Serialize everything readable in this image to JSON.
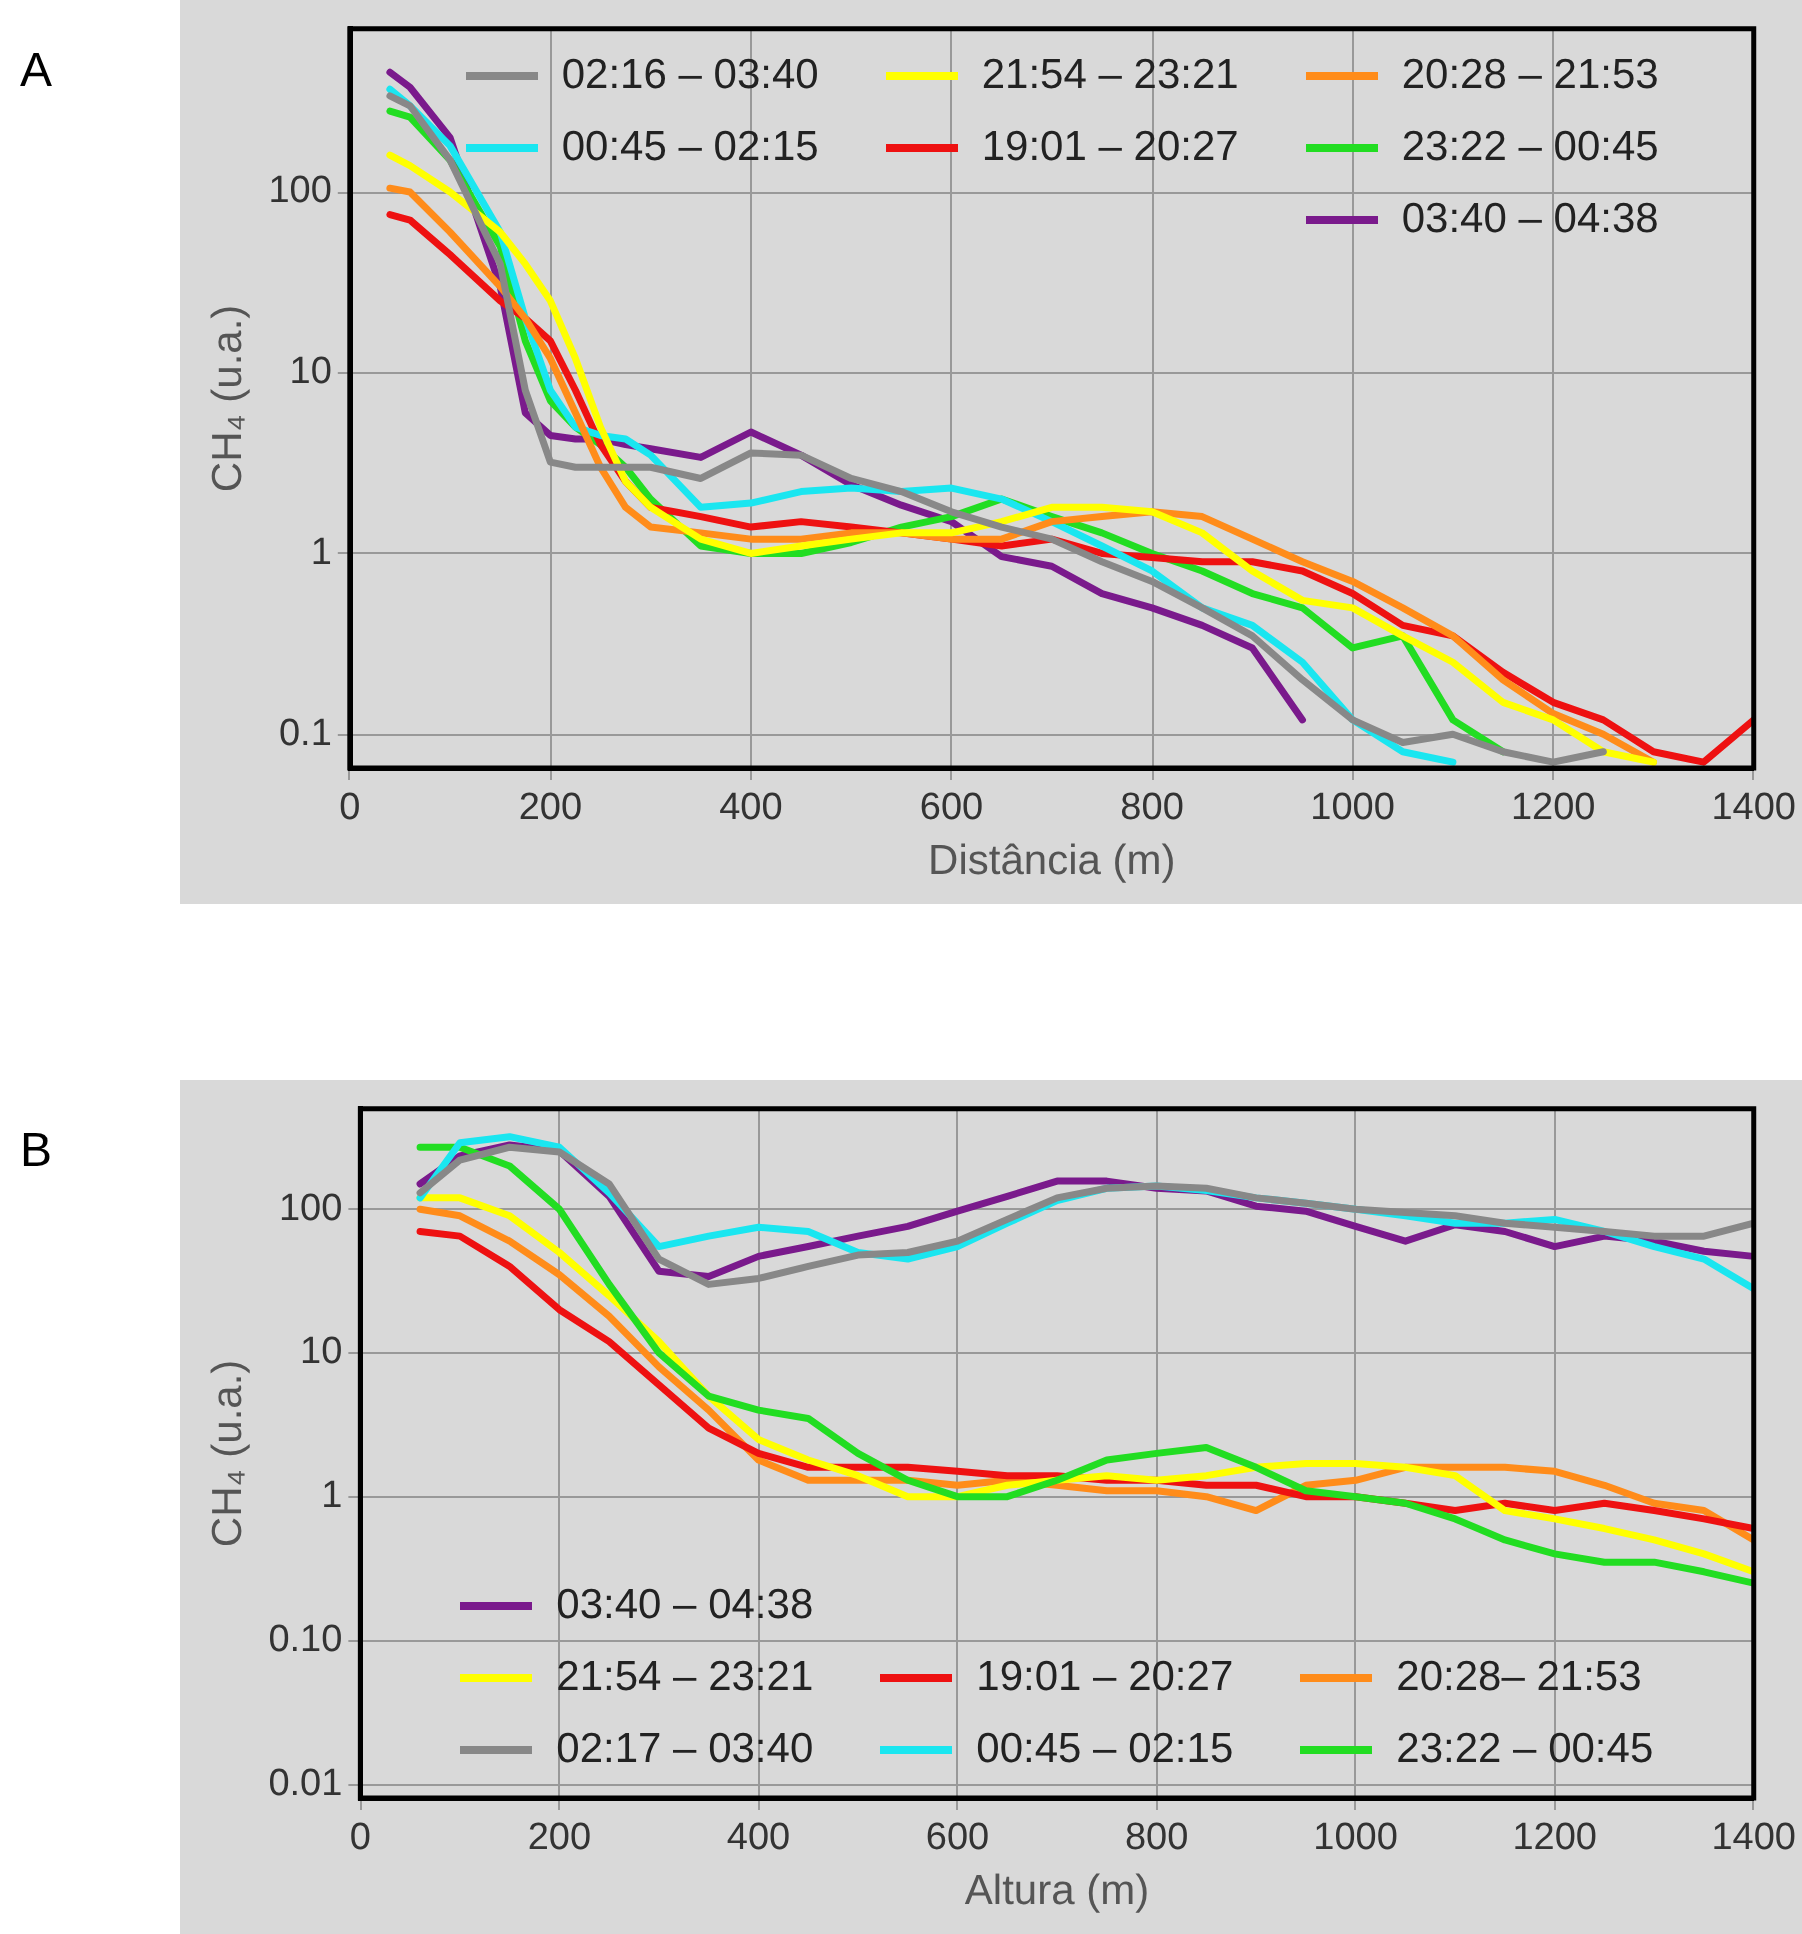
{
  "chart_data": [
    {
      "type": "line",
      "title": "A",
      "xlabel": "Distância (m)",
      "ylabel": "CH₄ (u.a.)",
      "log": "y",
      "grid": true,
      "legend": "top right",
      "line_style": "solid",
      "marker": "none",
      "xlim": [
        0,
        1400
      ],
      "xticks": [
        0,
        200,
        400,
        600,
        800,
        1000,
        1200,
        1400
      ],
      "ylim": [
        0.065,
        800
      ],
      "yticks": [
        0.1,
        1,
        10,
        100
      ],
      "x": [
        40,
        60,
        100,
        150,
        175,
        200,
        225,
        250,
        275,
        300,
        350,
        400,
        450,
        500,
        550,
        600,
        650,
        700,
        750,
        800,
        850,
        900,
        950,
        1000,
        1050,
        1100,
        1150,
        1200,
        1250,
        1300,
        1350,
        1400
      ],
      "series": [
        {
          "name": "02:16 – 03:40",
          "color": "#888888",
          "values": [
            340,
            300,
            150,
            40,
            8,
            3.2,
            3.0,
            3.0,
            3.0,
            3.0,
            2.6,
            3.6,
            3.5,
            2.6,
            2.2,
            1.7,
            1.4,
            1.2,
            0.9,
            0.7,
            0.5,
            0.35,
            0.2,
            0.12,
            0.09,
            0.1,
            0.08,
            0.07,
            0.08,
            null,
            null,
            null
          ]
        },
        {
          "name": "21:54 – 23:21",
          "color": "#ffff00",
          "values": [
            160,
            140,
            100,
            60,
            40,
            25,
            12,
            5,
            2.5,
            1.8,
            1.2,
            1.0,
            1.1,
            1.2,
            1.3,
            1.3,
            1.5,
            1.8,
            1.8,
            1.7,
            1.3,
            0.8,
            0.55,
            0.5,
            0.35,
            0.25,
            0.15,
            0.12,
            0.08,
            0.07,
            null,
            null
          ]
        },
        {
          "name": "20:28 – 21:53",
          "color": "#ff8c1a",
          "values": [
            105,
            100,
            60,
            30,
            20,
            12,
            6,
            3,
            1.8,
            1.4,
            1.3,
            1.2,
            1.2,
            1.3,
            1.3,
            1.2,
            1.2,
            1.5,
            1.6,
            1.7,
            1.6,
            1.2,
            0.9,
            0.7,
            0.5,
            0.35,
            0.2,
            0.13,
            0.1,
            0.07,
            null,
            null
          ]
        },
        {
          "name": "00:45 – 02:15",
          "color": "#1ae6f0",
          "values": [
            370,
            300,
            180,
            60,
            20,
            8,
            5,
            4.5,
            4.3,
            3.5,
            1.8,
            1.9,
            2.2,
            2.3,
            2.2,
            2.3,
            2.0,
            1.5,
            1.1,
            0.8,
            0.5,
            0.4,
            0.25,
            0.12,
            0.08,
            0.07,
            null,
            null,
            null,
            null,
            null,
            null
          ]
        },
        {
          "name": "19:01 – 20:27",
          "color": "#ee1111",
          "values": [
            75,
            70,
            45,
            25,
            20,
            15,
            8,
            4,
            2.5,
            1.8,
            1.6,
            1.4,
            1.5,
            1.4,
            1.3,
            1.2,
            1.1,
            1.2,
            1.0,
            0.95,
            0.9,
            0.9,
            0.8,
            0.6,
            0.4,
            0.35,
            0.22,
            0.15,
            0.12,
            0.08,
            0.07,
            0.12
          ]
        },
        {
          "name": "23:22 – 00:45",
          "color": "#22dd22",
          "values": [
            280,
            260,
            150,
            50,
            15,
            7,
            5,
            4,
            3,
            2,
            1.1,
            1.0,
            1.0,
            1.15,
            1.4,
            1.6,
            2.0,
            1.6,
            1.3,
            1.0,
            0.8,
            0.6,
            0.5,
            0.3,
            0.35,
            0.12,
            0.08,
            null,
            null,
            null,
            null,
            null
          ]
        },
        {
          "name": "03:40 – 04:38",
          "color": "#7a1a8c",
          "values": [
            460,
            380,
            200,
            30,
            6,
            4.5,
            4.3,
            4.3,
            4.0,
            3.8,
            3.4,
            4.7,
            3.5,
            2.4,
            1.85,
            1.5,
            0.96,
            0.85,
            0.6,
            0.5,
            0.4,
            0.3,
            0.12,
            null,
            null,
            null,
            null,
            null,
            null,
            null,
            null,
            null
          ]
        }
      ]
    },
    {
      "type": "line",
      "title": "B",
      "xlabel": "Altura (m)",
      "ylabel": "CH₄ (u.a.)",
      "log": "y",
      "grid": true,
      "legend": "bottom left",
      "line_style": "solid",
      "marker": "none",
      "xlim": [
        0,
        1400
      ],
      "xticks": [
        0,
        200,
        400,
        600,
        800,
        1000,
        1200,
        1400
      ],
      "ylim": [
        0.008,
        500
      ],
      "yticks": [
        {
          "value": 0.01,
          "label": "0.01"
        },
        {
          "value": 0.1,
          "label": "0.10"
        },
        1,
        10,
        100
      ],
      "x": [
        60,
        100,
        150,
        200,
        250,
        300,
        350,
        400,
        450,
        500,
        550,
        600,
        650,
        700,
        750,
        800,
        850,
        900,
        950,
        1000,
        1050,
        1100,
        1150,
        1200,
        1250,
        1300,
        1350,
        1400
      ],
      "series": [
        {
          "name": "02:17 – 03:40",
          "color": "#888888",
          "values": [
            130,
            220,
            270,
            250,
            150,
            45,
            30,
            33,
            40,
            48,
            50,
            60,
            85,
            120,
            140,
            145,
            140,
            120,
            110,
            100,
            95,
            90,
            80,
            75,
            70,
            65,
            65,
            80
          ]
        },
        {
          "name": "00:45 – 02:15",
          "color": "#1ae6f0",
          "values": [
            120,
            290,
            320,
            270,
            130,
            55,
            65,
            75,
            70,
            50,
            45,
            55,
            80,
            115,
            140,
            145,
            135,
            120,
            110,
            100,
            90,
            80,
            80,
            85,
            70,
            55,
            45,
            28
          ]
        },
        {
          "name": "23:22 – 00:45",
          "color": "#22dd22",
          "values": [
            270,
            270,
            200,
            100,
            30,
            10,
            5,
            4,
            3.5,
            2,
            1.3,
            1.0,
            1.0,
            1.3,
            1.8,
            2.0,
            2.2,
            1.6,
            1.1,
            1.0,
            0.9,
            0.7,
            0.5,
            0.4,
            0.35,
            0.35,
            0.3,
            0.25
          ]
        },
        {
          "name": "21:54 – 23:21",
          "color": "#ffff00",
          "values": [
            120,
            120,
            90,
            50,
            25,
            12,
            5,
            2.5,
            1.8,
            1.4,
            1.0,
            1.0,
            1.2,
            1.3,
            1.4,
            1.3,
            1.4,
            1.6,
            1.7,
            1.7,
            1.6,
            1.4,
            0.8,
            0.7,
            0.6,
            0.5,
            0.4,
            0.3
          ]
        },
        {
          "name": "19:01 – 20:27",
          "color": "#ee1111",
          "values": [
            70,
            65,
            40,
            20,
            12,
            6,
            3,
            2.0,
            1.6,
            1.6,
            1.6,
            1.5,
            1.4,
            1.4,
            1.3,
            1.3,
            1.2,
            1.2,
            1.0,
            1.0,
            0.9,
            0.8,
            0.9,
            0.8,
            0.9,
            0.8,
            0.7,
            0.6
          ]
        },
        {
          "name": "20:28– 21:53",
          "color": "#ff8c1a",
          "values": [
            100,
            90,
            60,
            35,
            18,
            8,
            4,
            1.8,
            1.3,
            1.3,
            1.3,
            1.2,
            1.3,
            1.2,
            1.1,
            1.1,
            1.0,
            0.8,
            1.2,
            1.3,
            1.6,
            1.6,
            1.6,
            1.5,
            1.2,
            0.9,
            0.8,
            0.5
          ]
        },
        {
          "name": "03:40 – 04:38",
          "color": "#7a1a8c",
          "values": [
            150,
            235,
            280,
            255,
            123,
            37,
            34,
            47,
            55,
            65,
            76,
            97,
            123,
            157,
            157,
            140,
            134,
            105,
            97,
            76,
            60,
            78,
            70,
            55,
            65,
            60,
            51,
            47
          ]
        }
      ]
    }
  ]
}
